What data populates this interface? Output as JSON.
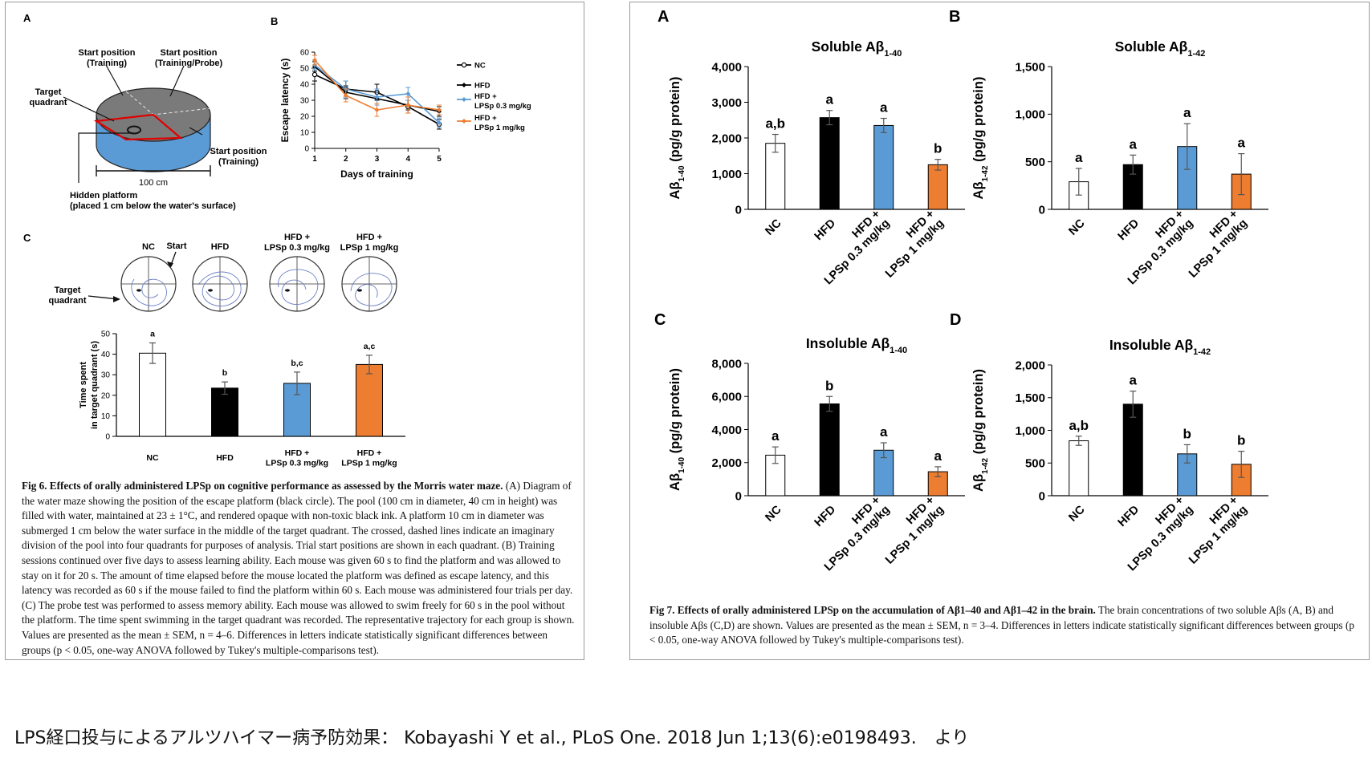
{
  "fig6": {
    "panelA": {
      "label": "A",
      "start_pos_1": [
        "Start position",
        "(Training)"
      ],
      "start_pos_2": [
        "Start position",
        "(Training/Probe)"
      ],
      "start_pos_3": [
        "Start position",
        "(Training)"
      ],
      "target_quadrant": [
        "Target",
        "quadrant"
      ],
      "scale": "100 cm",
      "hidden_platform": [
        "Hidden platform",
        "(placed 1 cm below the water's surface)"
      ]
    },
    "panelB": {
      "label": "B"
    },
    "panelC": {
      "label": "C",
      "start_label": "Start",
      "target_quadrant": [
        "Target",
        "quadrant"
      ],
      "group_titles": [
        [
          "NC"
        ],
        [
          "HFD"
        ],
        [
          "HFD +",
          "LPSp 0.3 mg/kg"
        ],
        [
          "HFD +",
          "LPSp 1 mg/kg"
        ]
      ]
    },
    "caption": {
      "title": "Fig 6. Effects of orally administered LPSp on cognitive performance as assessed by the Morris water maze.",
      "body": " (A) Diagram of the water maze showing the position of the escape platform (black circle). The pool (100 cm in diameter, 40 cm in height) was filled with water, maintained at 23 ± 1°C, and rendered opaque with non-toxic black ink. A platform 10 cm in diameter was submerged 1 cm below the water surface in the middle of the target quadrant. The crossed, dashed lines indicate an imaginary division of the pool into four quadrants for purposes of analysis. Trial start positions are shown in each quadrant. (B) Training sessions continued over five days to assess learning ability. Each mouse was given 60 s to find the platform and was allowed to stay on it for 20 s. The amount of time elapsed before the mouse located the platform was defined as escape latency, and this latency was recorded as 60 s if the mouse failed to find the platform within 60 s. Each mouse was administered four trials per day. (C) The probe test was performed to assess memory ability. Each mouse was allowed to swim freely for 60 s in the pool without the platform. The time spent swimming in the target quadrant was recorded. The representative trajectory for each group is shown. Values are presented as the mean ± SEM, n = 4–6. Differences in letters indicate statistically significant differences between groups (p < 0.05, one-way ANOVA followed by Tukey's multiple-comparisons test)."
    }
  },
  "fig7": {
    "caption": {
      "title": "Fig 7. Effects of orally administered LPSp on the accumulation of Aβ1–40 and Aβ1–42 in the brain.",
      "body": " The brain concentrations of two soluble Aβs (A, B) and insoluble Aβs (C,D) are shown. Values are presented as the mean ± SEM, n = 3–4. Differences in letters indicate statistically significant differences between groups (p < 0.05, one-way ANOVA followed by Tukey's multiple-comparisons test)."
    }
  },
  "source_note": "LPS経口投与によるアルツハイマー病予防効果： Kobayashi Y et al., PLoS One. 2018 Jun 1;13(6):e0198493.　より",
  "colors": {
    "NC": "#ffffff",
    "HFD": "#000000",
    "LPSp_low": "#5b9bd5",
    "LPSp_high": "#ed7d31"
  },
  "chart_data": [
    {
      "id": "fig6B",
      "type": "line",
      "ylabel": "Escape latency (s)",
      "xlabel": "Days of training",
      "x": [
        1,
        2,
        3,
        4,
        5
      ],
      "ylim": [
        0,
        60
      ],
      "yticks": [
        0,
        10,
        20,
        30,
        40,
        50,
        60
      ],
      "series": [
        {
          "name": "NC",
          "values": [
            46,
            37,
            35,
            26,
            15
          ],
          "errors": [
            4,
            5,
            5,
            4,
            3
          ],
          "color": "#000000",
          "marker": "open-circle"
        },
        {
          "name": "HFD",
          "values": [
            51,
            35,
            31,
            27,
            23
          ],
          "errors": [
            3,
            4,
            4,
            3,
            3
          ],
          "color": "#000000",
          "marker": "filled-diamond"
        },
        {
          "name": "HFD + LPSp 0.3 mg/kg",
          "values": [
            52,
            37,
            32,
            34,
            16
          ],
          "errors": [
            3,
            5,
            5,
            4,
            3
          ],
          "color": "#5b9bd5",
          "marker": "filled-diamond"
        },
        {
          "name": "HFD + LPSp 1 mg/kg",
          "values": [
            55,
            33,
            24,
            27,
            24
          ],
          "errors": [
            3,
            4,
            4,
            5,
            3
          ],
          "color": "#ed7d31",
          "marker": "filled-diamond"
        }
      ],
      "legend": "right"
    },
    {
      "id": "fig6C",
      "type": "bar",
      "ylabel": "Time spent in target quadrant (s)",
      "categories": [
        "NC",
        "HFD",
        "HFD + LPSp 0.3 mg/kg",
        "HFD + LPSp 1 mg/kg"
      ],
      "category_lines": [
        [
          "NC"
        ],
        [
          "HFD"
        ],
        [
          "HFD +",
          "LPSp 0.3 mg/kg"
        ],
        [
          "HFD +",
          "LPSp 1 mg/kg"
        ]
      ],
      "values": [
        40.5,
        23.5,
        25.8,
        35.0
      ],
      "errors": [
        5,
        3,
        5.5,
        4.5
      ],
      "letters": [
        "a",
        "b",
        "b,c",
        "a,c"
      ],
      "ylim": [
        0,
        50
      ],
      "yticks": [
        0,
        10,
        20,
        30,
        40,
        50
      ]
    },
    {
      "id": "fig7A",
      "label": "A",
      "type": "bar",
      "title": "Soluble Aβ1-40",
      "ylabel": "Aβ1-40 (pg/g protein)",
      "categories": [
        "NC",
        "HFD",
        "HFD + LPSp 0.3 mg/kg",
        "HFD + LPSp 1 mg/kg"
      ],
      "category_lines": [
        [
          "NC"
        ],
        [
          "HFD"
        ],
        [
          "HFD +",
          "LPSp 0.3 mg/kg"
        ],
        [
          "HFD +",
          "LPSp 1 mg/kg"
        ]
      ],
      "values": [
        1850,
        2570,
        2350,
        1250
      ],
      "errors": [
        250,
        200,
        200,
        150
      ],
      "letters": [
        "a,b",
        "a",
        "a",
        "b"
      ],
      "ylim": [
        0,
        4000
      ],
      "yticks": [
        "0",
        "1,000",
        "2,000",
        "3,000",
        "4,000"
      ]
    },
    {
      "id": "fig7B",
      "label": "B",
      "type": "bar",
      "title": "Soluble Aβ1-42",
      "ylabel": "Aβ1-42 (pg/g protein)",
      "categories": [
        "NC",
        "HFD",
        "HFD + LPSp 0.3 mg/kg",
        "HFD + LPSp 1 mg/kg"
      ],
      "category_lines": [
        [
          "NC"
        ],
        [
          "HFD"
        ],
        [
          "HFD +",
          "LPSp 0.3 mg/kg"
        ],
        [
          "HFD +",
          "LPSp 1 mg/kg"
        ]
      ],
      "values": [
        290,
        470,
        660,
        370
      ],
      "errors": [
        140,
        100,
        240,
        215
      ],
      "letters": [
        "a",
        "a",
        "a",
        "a"
      ],
      "ylim": [
        0,
        1500
      ],
      "yticks": [
        "0",
        "500",
        "1,000",
        "1,500"
      ]
    },
    {
      "id": "fig7C",
      "label": "C",
      "type": "bar",
      "title": "Insoluble Aβ1-40",
      "ylabel": "Aβ1-40 (pg/g protein)",
      "categories": [
        "NC",
        "HFD",
        "HFD + LPSp 0.3 mg/kg",
        "HFD + LPSp 1 mg/kg"
      ],
      "category_lines": [
        [
          "NC"
        ],
        [
          "HFD"
        ],
        [
          "HFD +",
          "LPSp 0.3 mg/kg"
        ],
        [
          "HFD +",
          "LPSp 1 mg/kg"
        ]
      ],
      "values": [
        2450,
        5550,
        2750,
        1450
      ],
      "errors": [
        500,
        450,
        450,
        300
      ],
      "letters": [
        "a",
        "b",
        "a",
        "a"
      ],
      "ylim": [
        0,
        8000
      ],
      "yticks": [
        "0",
        "2,000",
        "4,000",
        "6,000",
        "8,000"
      ]
    },
    {
      "id": "fig7D",
      "label": "D",
      "type": "bar",
      "title": "Insoluble Aβ1-42",
      "ylabel": "Aβ1-42 (pg/g protein)",
      "categories": [
        "NC",
        "HFD",
        "HFD + LPSp 0.3 mg/kg",
        "HFD + LPSp 1 mg/kg"
      ],
      "category_lines": [
        [
          "NC"
        ],
        [
          "HFD"
        ],
        [
          "HFD +",
          "LPSp 0.3 mg/kg"
        ],
        [
          "HFD +",
          "LPSp 1 mg/kg"
        ]
      ],
      "values": [
        840,
        1400,
        640,
        480
      ],
      "errors": [
        70,
        200,
        140,
        200
      ],
      "letters": [
        "a,b",
        "a",
        "b",
        "b"
      ],
      "ylim": [
        0,
        2000
      ],
      "yticks": [
        "0",
        "500",
        "1,000",
        "1,500",
        "2,000"
      ]
    }
  ]
}
